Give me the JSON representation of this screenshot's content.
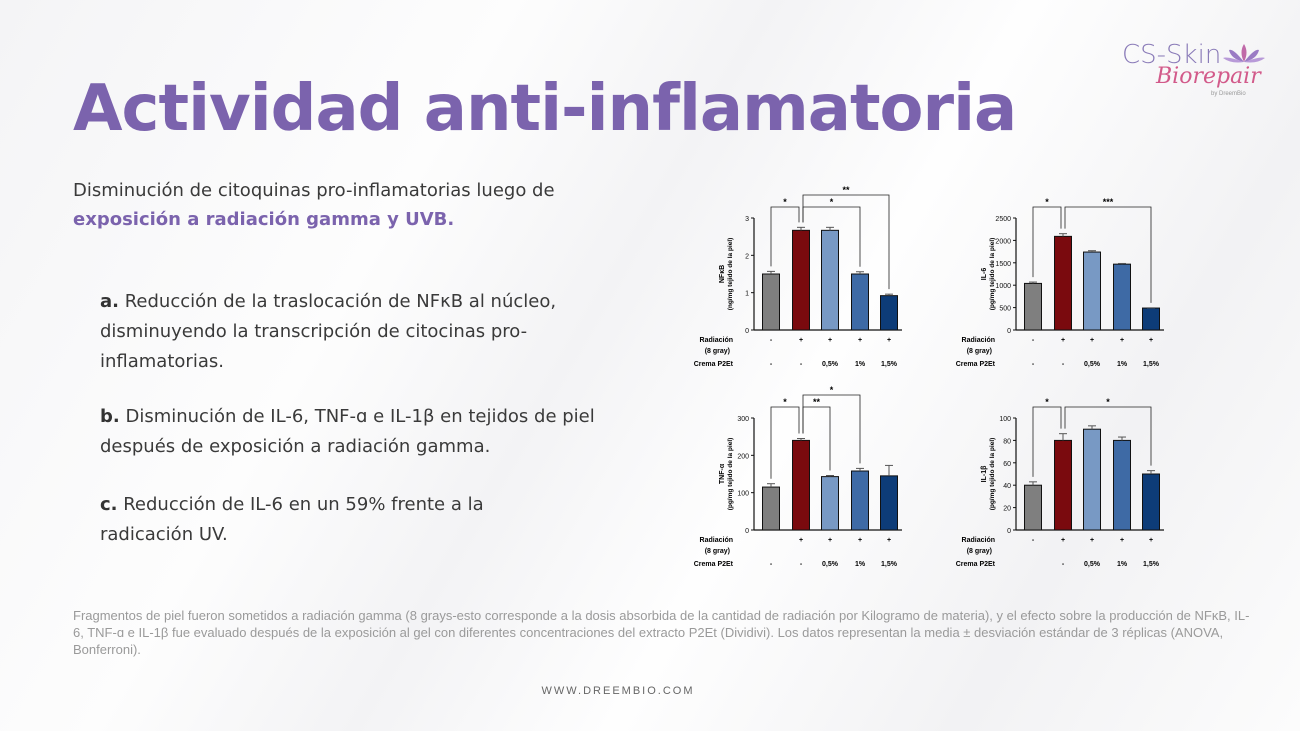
{
  "title": "Actividad anti-inflamatoria",
  "subtitle": {
    "text": "Disminución de citoquinas pro-inflamatorias luego de ",
    "highlight": "exposición a radiación gamma y UVB."
  },
  "points": [
    {
      "letter": "a.",
      "text": " Reducción de la traslocación de NFκB al núcleo, disminuyendo la transcripción de citocinas pro-inflamatorias."
    },
    {
      "letter": "b.",
      "text": " Disminución de IL-6, TNF-ɑ e IL-1β en tejidos de piel después de exposición a radiación gamma."
    },
    {
      "letter": "c.",
      "text": " Reducción de IL-6 en un 59% frente a la radicación UV."
    }
  ],
  "caption": "Fragmentos de piel fueron sometidos a radiación gamma (8 grays-esto corresponde a la dosis absorbida de la cantidad de radiación por Kilogramo de materia), y el efecto sobre la producción de NFκB, IL-6, TNF-ɑ e IL-1β fue evaluado después de la exposición al gel con diferentes concentraciones del extracto P2Et (Dividivi). Los datos representan la media ± desviación estándar de 3 réplicas (ANOVA, Bonferroni).",
  "website": "WWW.DREEMBIO.COM",
  "logo": {
    "line1": "CS-Skin",
    "line2": "Biorepair",
    "by": "by DreemBio",
    "colors": {
      "cs": "#8a7bb8",
      "bio": "#d25a8a"
    }
  },
  "colors": {
    "title": "#7b63ad",
    "bars": [
      "#7f7f7f",
      "#7a0a0e",
      "#7899c4",
      "#3e6aa5",
      "#0d3c78"
    ]
  },
  "chart_data": [
    {
      "type": "bar",
      "ylabel": [
        "NFκB",
        "(ng/mg tejido de la piel)"
      ],
      "ylim": [
        0,
        3
      ],
      "yticks": [
        0,
        1,
        2,
        3
      ],
      "values": [
        1.5,
        2.67,
        2.67,
        1.5,
        0.92
      ],
      "errors": [
        0.07,
        0.08,
        0.08,
        0.06,
        0.04
      ],
      "row_labels": [
        "Radiación",
        "(8 gray)",
        "Crema P2Et"
      ],
      "radiacion": [
        "-",
        "+",
        "+",
        "+",
        "+"
      ],
      "crema": [
        "-",
        "-",
        "0,5%",
        "1%",
        "1,5%"
      ],
      "significance": [
        {
          "from": 0,
          "to": 1,
          "label": "*",
          "level": 1
        },
        {
          "from": 1,
          "to": 3,
          "label": "*",
          "level": 1
        },
        {
          "from": 1,
          "to": 4,
          "label": "**",
          "level": 2
        }
      ]
    },
    {
      "type": "bar",
      "ylabel": [
        "IL-6",
        "(pg/mg tejido de la piel)"
      ],
      "ylim": [
        0,
        2500
      ],
      "yticks": [
        0,
        500,
        1000,
        1500,
        2000,
        2500
      ],
      "values": [
        1040,
        2090,
        1740,
        1470,
        490
      ],
      "errors": [
        30,
        60,
        30,
        15,
        5
      ],
      "row_labels": [
        "Radiación",
        "(8 gray)",
        "Crema P2Et"
      ],
      "radiacion": [
        "-",
        "+",
        "+",
        "+",
        "+"
      ],
      "crema": [
        "-",
        "-",
        "0,5%",
        "1%",
        "1,5%"
      ],
      "significance": [
        {
          "from": 0,
          "to": 1,
          "label": "*",
          "level": 1
        },
        {
          "from": 1,
          "to": 4,
          "label": "***",
          "level": 1
        }
      ]
    },
    {
      "type": "bar",
      "ylabel": [
        "TNF-α",
        "(pg/mg tejido de la piel)"
      ],
      "ylim": [
        0,
        300
      ],
      "yticks": [
        0,
        100,
        200,
        300
      ],
      "values": [
        115,
        240,
        143,
        158,
        145
      ],
      "errors": [
        9,
        5,
        3,
        7,
        28
      ],
      "row_labels": [
        "Radiación",
        "(8 gray)",
        "Crema P2Et"
      ],
      "radiacion": [
        "",
        "+",
        "+",
        "+",
        "+"
      ],
      "crema": [
        "-",
        "-",
        "0,5%",
        "1%",
        "1,5%"
      ],
      "significance": [
        {
          "from": 0,
          "to": 1,
          "label": "*",
          "level": 1
        },
        {
          "from": 1,
          "to": 2,
          "label": "**",
          "level": 1
        },
        {
          "from": 1,
          "to": 3,
          "label": "*",
          "level": 2
        }
      ]
    },
    {
      "type": "bar",
      "ylabel": [
        "IL-1β",
        "(pg/mg tejido de la piel)"
      ],
      "ylim": [
        0,
        100
      ],
      "yticks": [
        0,
        20,
        40,
        60,
        80,
        100
      ],
      "values": [
        40,
        80,
        90,
        80,
        50
      ],
      "errors": [
        3,
        6,
        3,
        3,
        3
      ],
      "row_labels": [
        "Radiación",
        "(8 gray)",
        "Crema P2Et"
      ],
      "radiacion": [
        "-",
        "+",
        "+",
        "+",
        "+"
      ],
      "crema": [
        "",
        "-",
        "0,5%",
        "1%",
        "1,5%"
      ],
      "significance": [
        {
          "from": 0,
          "to": 1,
          "label": "*",
          "level": 1
        },
        {
          "from": 1,
          "to": 4,
          "label": "*",
          "level": 1
        }
      ]
    }
  ]
}
